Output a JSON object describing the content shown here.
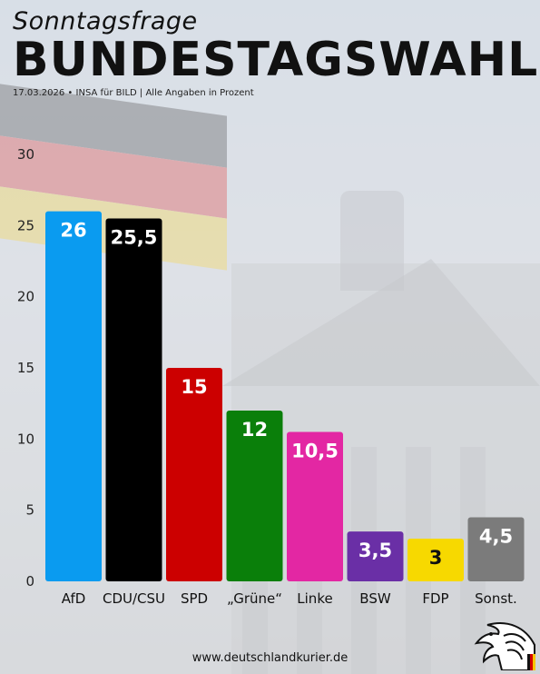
{
  "header": {
    "kicker": "Sonntagsfrage",
    "title": "BUNDESTAGSWAHL",
    "meta": "17.03.2026 • INSA für BILD | Alle Angaben in Prozent"
  },
  "footer": {
    "url": "www.deutschlandkurier.de"
  },
  "logo": {
    "icon": "eagle-icon"
  },
  "chart_data": {
    "type": "bar",
    "categories": [
      "AfD",
      "CDU/CSU",
      "SPD",
      "„Grüne“",
      "Linke",
      "BSW",
      "FDP",
      "Sonst."
    ],
    "values": [
      26,
      25.5,
      15,
      12,
      10.5,
      3.5,
      3,
      4.5
    ],
    "value_labels": [
      "26",
      "25,5",
      "15",
      "12",
      "10,5",
      "3,5",
      "3",
      "4,5"
    ],
    "colors": [
      "#0a9bf0",
      "#000000",
      "#cc0000",
      "#0a7f0a",
      "#e327a3",
      "#6a2fa6",
      "#f7d900",
      "#7b7b7b"
    ],
    "label_colors": [
      "#ffffff",
      "#ffffff",
      "#ffffff",
      "#ffffff",
      "#ffffff",
      "#ffffff",
      "#111111",
      "#ffffff"
    ],
    "yticks": [
      "0",
      "5",
      "10",
      "15",
      "20",
      "25",
      "30"
    ],
    "ylim": [
      0,
      30
    ],
    "grid": false,
    "title": "BUNDESTAGSWAHL",
    "xlabel": "",
    "ylabel": ""
  }
}
